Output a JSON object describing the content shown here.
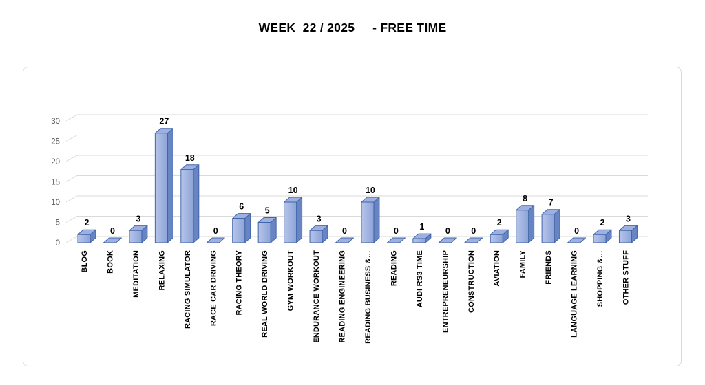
{
  "chart_data": {
    "type": "bar",
    "style": "3d-column",
    "title": "WEEK  22 / 2025     - FREE TIME",
    "xlabel": "",
    "ylabel": "",
    "ylim": [
      0,
      30
    ],
    "yticks": [
      0,
      5,
      10,
      15,
      20,
      25,
      30
    ],
    "grid": true,
    "legend": false,
    "data_labels": true,
    "categories": [
      "BLOG",
      "BOOK",
      "MEDITATION",
      "RELAXING",
      "RACING SIMULATOR",
      "RACE CAR DRIVING",
      "RACING THEORY",
      "REAL WORLD DRIVING",
      "GYM WORKOUT",
      "ENDURANCE WORKOUT",
      "READING ENGINEERING",
      "READING BUSINESS &…",
      "READING",
      "AUDI RS3 TIME",
      "ENTREPRENEURSHIP",
      "CONSTRUCTION",
      "AVIATION",
      "FAMILY",
      "FRIENDS",
      "LANGUAGE LEARNING",
      "SHOPPING &…",
      "OTHER STUFF"
    ],
    "values": [
      2,
      0,
      3,
      27,
      18,
      0,
      6,
      5,
      10,
      3,
      0,
      10,
      0,
      1,
      0,
      0,
      2,
      8,
      7,
      0,
      2,
      3
    ],
    "colors": {
      "bar_front_light": "#B7C5E9",
      "bar_front_dark": "#8CA3D8",
      "bar_top": "#9DB0E0",
      "bar_side": "#6884C2",
      "bar_border": "#4065A8",
      "gridline": "#D9D9D9",
      "tick_label": "#595959",
      "value_label": "#000000",
      "category_label": "#000000",
      "chart_border": "#D9D9D9"
    }
  }
}
